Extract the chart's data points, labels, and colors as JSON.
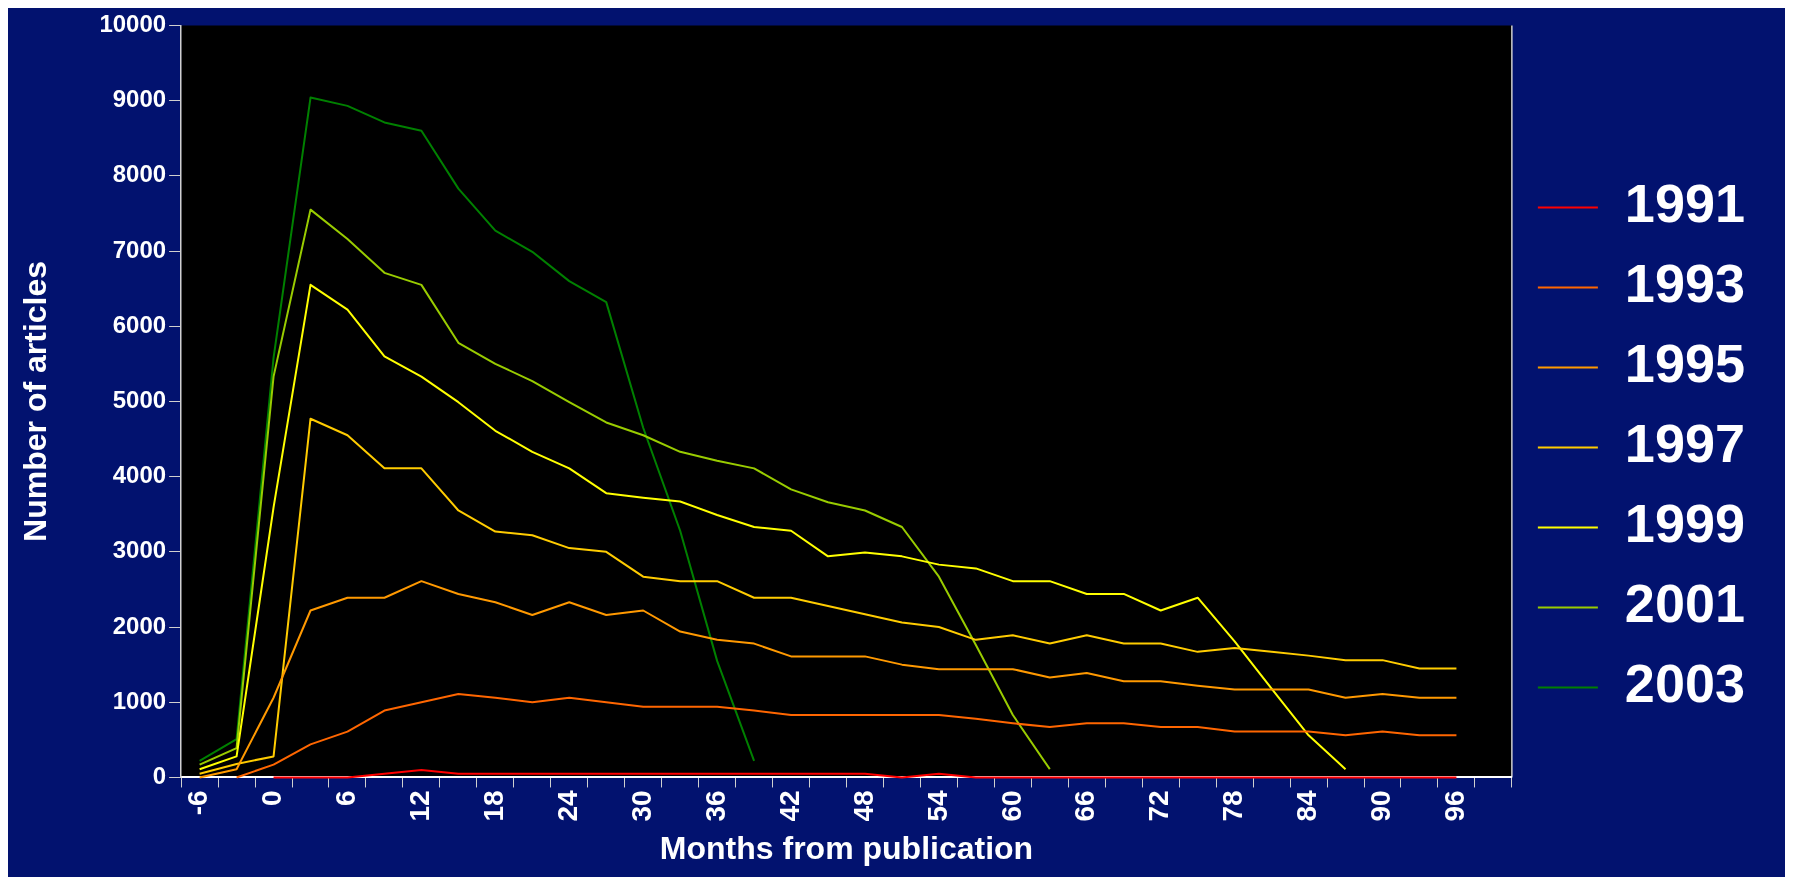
{
  "chart_data": {
    "type": "line",
    "xlabel": "Months from publication",
    "ylabel": "Number of articles",
    "categories": [
      "-6",
      null,
      "0",
      null,
      "6",
      null,
      "12",
      null,
      "18",
      null,
      "24",
      null,
      "30",
      null,
      "36",
      null,
      "42",
      null,
      "48",
      null,
      "54",
      null,
      "60",
      null,
      "66",
      null,
      "72",
      null,
      "78",
      null,
      "84",
      null,
      "90",
      null,
      "96",
      null
    ],
    "ylim": [
      0,
      10000
    ],
    "yticks": [
      0,
      1000,
      2000,
      3000,
      4000,
      5000,
      6000,
      7000,
      8000,
      9000,
      10000
    ],
    "grid": false,
    "legend": "right",
    "marker": "none",
    "line_style": "solid",
    "series": [
      {
        "name": "1991",
        "color": "#ff0000",
        "values": [
          null,
          null,
          0,
          0,
          0,
          50,
          100,
          50,
          50,
          50,
          50,
          50,
          50,
          50,
          50,
          50,
          50,
          50,
          50,
          0,
          50,
          0,
          0,
          0,
          0,
          0,
          0,
          0,
          0,
          0,
          0,
          0,
          0,
          0,
          0,
          null
        ]
      },
      {
        "name": "1993",
        "color": "#ff6600",
        "values": [
          null,
          0,
          170,
          440,
          610,
          890,
          1000,
          1110,
          1060,
          1000,
          1060,
          1000,
          940,
          940,
          940,
          890,
          830,
          830,
          830,
          830,
          830,
          780,
          720,
          670,
          720,
          720,
          670,
          670,
          610,
          610,
          610,
          560,
          610,
          560,
          560,
          null
        ]
      },
      {
        "name": "1995",
        "color": "#ff9900",
        "values": [
          0,
          110,
          1060,
          2220,
          2390,
          2390,
          2610,
          2440,
          2330,
          2160,
          2330,
          2160,
          2220,
          1940,
          1830,
          1780,
          1610,
          1610,
          1610,
          1500,
          1440,
          1440,
          1440,
          1330,
          1390,
          1280,
          1280,
          1220,
          1170,
          1170,
          1170,
          1060,
          1110,
          1060,
          1060,
          null
        ]
      },
      {
        "name": "1997",
        "color": "#ffcc00",
        "values": [
          50,
          180,
          280,
          4770,
          4550,
          4110,
          4110,
          3550,
          3270,
          3220,
          3050,
          3000,
          2670,
          2610,
          2610,
          2390,
          2390,
          2280,
          2170,
          2060,
          2000,
          1830,
          1890,
          1780,
          1890,
          1780,
          1780,
          1670,
          1720,
          1670,
          1620,
          1560,
          1560,
          1450,
          1450,
          null
        ]
      },
      {
        "name": "1999",
        "color": "#ffff00",
        "values": [
          110,
          280,
          3590,
          6550,
          6220,
          5600,
          5330,
          4990,
          4610,
          4330,
          4110,
          3780,
          3720,
          3670,
          3490,
          3330,
          3280,
          2940,
          2990,
          2940,
          2830,
          2780,
          2610,
          2610,
          2440,
          2440,
          2220,
          2390,
          1810,
          1180,
          560,
          110,
          null,
          null,
          null,
          null
        ]
      },
      {
        "name": "2001",
        "color": "#99cc00",
        "values": [
          170,
          390,
          5330,
          7550,
          7160,
          6710,
          6550,
          5780,
          5500,
          5270,
          4990,
          4720,
          4550,
          4330,
          4210,
          4110,
          3830,
          3660,
          3550,
          3330,
          2670,
          1760,
          830,
          110,
          null,
          null,
          null,
          null,
          null,
          null,
          null,
          null,
          null,
          null,
          null,
          null
        ]
      },
      {
        "name": "2003",
        "color": "#008000",
        "values": [
          220,
          510,
          5580,
          9040,
          8930,
          8710,
          8600,
          7830,
          7270,
          6990,
          6600,
          6320,
          4650,
          3280,
          1550,
          220,
          null,
          null,
          null,
          null,
          null,
          null,
          null,
          null,
          null,
          null,
          null,
          null,
          null,
          null,
          null,
          null,
          null,
          null,
          null,
          null
        ]
      }
    ]
  }
}
